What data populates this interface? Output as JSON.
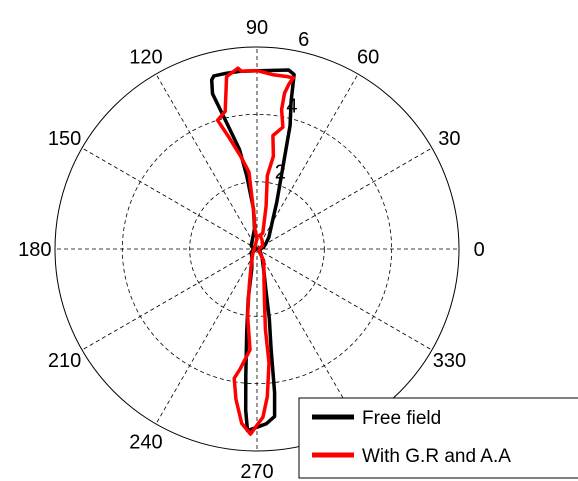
{
  "chart_data": {
    "type": "polar",
    "r_ticks": [
      2,
      4,
      6
    ],
    "rmax": 6,
    "angle_ticks": [
      0,
      30,
      60,
      90,
      120,
      150,
      180,
      210,
      240,
      270,
      300,
      330
    ],
    "angle_labels": [
      "0",
      "30",
      "60",
      "90",
      "120",
      "150",
      "180",
      "210",
      "240",
      "270",
      "",
      "330"
    ],
    "grid": true,
    "legend": {
      "position": "bottom-right"
    },
    "series": [
      {
        "name": "Free field",
        "color": "#000000",
        "points": [
          [
            0,
            0.1
          ],
          [
            15,
            0.2
          ],
          [
            30,
            0.3
          ],
          [
            45,
            0.5
          ],
          [
            60,
            0.9
          ],
          [
            67,
            1.5
          ],
          [
            72,
            2.4
          ],
          [
            75,
            3.8
          ],
          [
            77,
            4.5
          ],
          [
            78,
            5.3
          ],
          [
            80,
            5.4
          ],
          [
            95,
            5.3
          ],
          [
            100,
            5.3
          ],
          [
            104,
            5.3
          ],
          [
            105,
            5.2
          ],
          [
            106,
            4.8
          ],
          [
            103,
            3.7
          ],
          [
            100,
            3.0
          ],
          [
            98,
            2.2
          ],
          [
            95,
            1.2
          ],
          [
            97,
            0.6
          ],
          [
            150,
            0.2
          ],
          [
            180,
            0.1
          ],
          [
            210,
            0.2
          ],
          [
            240,
            0.3
          ],
          [
            255,
            0.6
          ],
          [
            260,
            1.5
          ],
          [
            263,
            2.5
          ],
          [
            265,
            3.8
          ],
          [
            266,
            4.8
          ],
          [
            267,
            5.4
          ],
          [
            273,
            5.2
          ],
          [
            276,
            5.0
          ],
          [
            277,
            4.3
          ],
          [
            278,
            3.0
          ],
          [
            280,
            2.1
          ],
          [
            282,
            1.3
          ],
          [
            287,
            0.7
          ],
          [
            300,
            0.3
          ],
          [
            330,
            0.1
          ],
          [
            360,
            0.1
          ]
        ]
      },
      {
        "name": "With G.R and A.A",
        "color": "#ff0000",
        "points": [
          [
            0,
            0.05
          ],
          [
            30,
            0.2
          ],
          [
            60,
            0.3
          ],
          [
            75,
            0.4
          ],
          [
            80,
            0.4
          ],
          [
            70,
            0.5
          ],
          [
            78,
            1.3
          ],
          [
            82,
            2.2
          ],
          [
            80,
            2.8
          ],
          [
            82,
            3.4
          ],
          [
            78,
            3.7
          ],
          [
            80,
            4.2
          ],
          [
            80,
            4.7
          ],
          [
            79,
            5.0
          ],
          [
            78,
            5.2
          ],
          [
            80,
            5.2
          ],
          [
            85,
            5.2
          ],
          [
            90,
            5.3
          ],
          [
            95,
            5.3
          ],
          [
            96,
            5.4
          ],
          [
            100,
            5.2
          ],
          [
            103,
            4.2
          ],
          [
            107,
            4.0
          ],
          [
            104,
            3.4
          ],
          [
            100,
            2.8
          ],
          [
            96,
            2.3
          ],
          [
            95,
            1.0
          ],
          [
            96,
            0.6
          ],
          [
            90,
            0.3
          ],
          [
            170,
            0.08
          ],
          [
            230,
            0.2
          ],
          [
            250,
            0.5
          ],
          [
            258,
            1.1
          ],
          [
            262,
            2.0
          ],
          [
            266,
            3.0
          ],
          [
            262,
            3.6
          ],
          [
            260,
            3.9
          ],
          [
            262,
            4.5
          ],
          [
            265,
            5.2
          ],
          [
            268,
            5.5
          ],
          [
            272,
            5.0
          ],
          [
            274,
            4.4
          ],
          [
            276,
            3.4
          ],
          [
            276,
            2.4
          ],
          [
            278,
            1.6
          ],
          [
            282,
            1.0
          ],
          [
            290,
            0.6
          ],
          [
            300,
            0.4
          ],
          [
            310,
            0.1
          ],
          [
            360,
            0.05
          ]
        ]
      }
    ]
  }
}
